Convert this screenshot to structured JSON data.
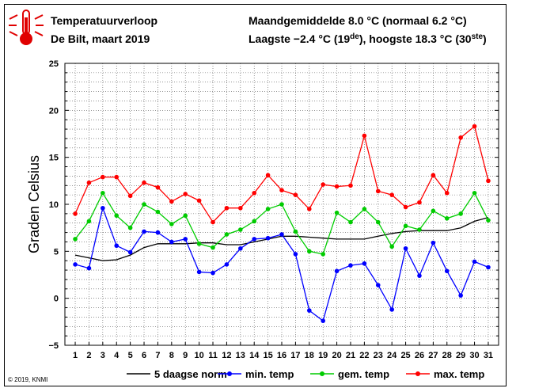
{
  "header": {
    "title": "Temperatuurverloop",
    "subtitle": "De Bilt, maart 2019",
    "line1": "Maandgemiddelde 8.0 °C (normaal 6.2 °C)",
    "line2_prefix": "Laagste −2.4 °C (19",
    "line2_sup1": "de",
    "line2_mid": "), hoogste 18.3 °C (30",
    "line2_sup2": "ste",
    "line2_suffix": ")"
  },
  "footer": {
    "copyright": "© 2019, KNMI"
  },
  "icon": "thermometer-icon",
  "chart_data": {
    "type": "line",
    "ylabel": "Graden Celsius",
    "xlabel": "",
    "ylim": [
      -5,
      25
    ],
    "yticks": [
      -5,
      0,
      5,
      10,
      15,
      20,
      25
    ],
    "ytick_labels": [
      "−5",
      "0",
      "5",
      "10",
      "15",
      "20",
      "25"
    ],
    "x": [
      1,
      2,
      3,
      4,
      5,
      6,
      7,
      8,
      9,
      10,
      11,
      12,
      13,
      14,
      15,
      16,
      17,
      18,
      19,
      20,
      21,
      22,
      23,
      24,
      25,
      26,
      27,
      28,
      29,
      30,
      31
    ],
    "legend_position": "bottom",
    "series": [
      {
        "name": "5 daagse norm",
        "color": "#000000",
        "markers": false,
        "values": [
          4.6,
          4.3,
          4.0,
          4.1,
          4.6,
          5.4,
          5.8,
          5.8,
          5.8,
          5.9,
          5.9,
          5.7,
          5.7,
          6.0,
          6.3,
          6.6,
          6.6,
          6.5,
          6.4,
          6.3,
          6.3,
          6.3,
          6.6,
          6.9,
          7.1,
          7.2,
          7.2,
          7.2,
          7.5,
          8.2,
          8.6
        ]
      },
      {
        "name": "min. temp",
        "color": "#0000ff",
        "markers": true,
        "values": [
          3.6,
          3.2,
          9.6,
          5.6,
          4.9,
          7.1,
          7.0,
          6.0,
          6.3,
          2.8,
          2.7,
          3.6,
          5.3,
          6.3,
          6.4,
          6.8,
          4.7,
          -1.3,
          -2.4,
          2.9,
          3.5,
          3.7,
          1.4,
          -1.2,
          5.3,
          2.4,
          5.9,
          2.9,
          0.3,
          3.9,
          3.3
        ]
      },
      {
        "name": "gem. temp",
        "color": "#00cc00",
        "markers": true,
        "values": [
          6.3,
          8.2,
          11.2,
          8.8,
          7.5,
          10.0,
          9.2,
          7.9,
          8.8,
          5.8,
          5.4,
          6.8,
          7.3,
          8.2,
          9.5,
          10.0,
          7.1,
          5.0,
          4.7,
          9.1,
          8.1,
          9.5,
          8.1,
          5.5,
          7.7,
          7.3,
          9.3,
          8.5,
          9.0,
          11.2,
          8.3
        ]
      },
      {
        "name": "max. temp",
        "color": "#ff0000",
        "markers": true,
        "values": [
          9.0,
          12.3,
          12.9,
          12.9,
          10.9,
          12.3,
          11.8,
          10.3,
          11.1,
          10.4,
          8.1,
          9.6,
          9.6,
          11.2,
          13.1,
          11.5,
          11.0,
          9.5,
          12.1,
          11.9,
          12.0,
          17.3,
          11.4,
          11.0,
          9.7,
          10.2,
          13.1,
          11.2,
          17.1,
          18.3,
          12.5
        ]
      }
    ]
  }
}
